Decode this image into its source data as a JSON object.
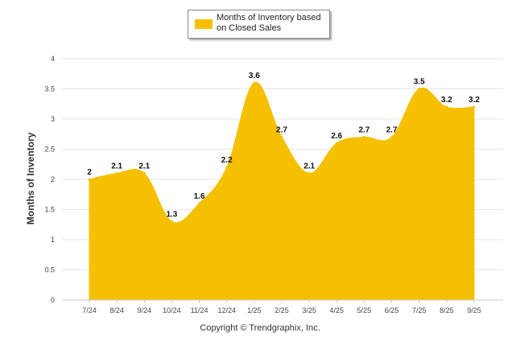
{
  "chart_data": {
    "type": "area",
    "title": "",
    "series": [
      {
        "name": "Months of Inventory based on Closed Sales",
        "values": [
          2,
          2.1,
          2.1,
          1.3,
          1.6,
          2.2,
          3.6,
          2.7,
          2.1,
          2.6,
          2.7,
          2.7,
          3.5,
          3.2,
          3.2
        ]
      }
    ],
    "categories": [
      "7/24",
      "8/24",
      "9/24",
      "10/24",
      "11/24",
      "12/24",
      "1/25",
      "2/25",
      "3/25",
      "4/25",
      "5/25",
      "6/25",
      "7/25",
      "8/25",
      "9/25"
    ],
    "data_labels": [
      "2",
      "2.1",
      "2.1",
      "1.3",
      "1.6",
      "2.2",
      "3.6",
      "2.7",
      "2.1",
      "2.6",
      "2.7",
      "2.7",
      "3.5",
      "3.2",
      "3.2"
    ],
    "y_ticks": [
      "0",
      "0.5",
      "1",
      "1.5",
      "2",
      "2.5",
      "3",
      "3.5",
      "4"
    ],
    "xlabel": "",
    "ylabel": "Months of Inventory",
    "ylim": [
      0,
      4
    ],
    "grid": true,
    "legend_position": "top-center",
    "color": "#f5c000"
  },
  "legend": {
    "label": "Months of Inventory based on Closed Sales"
  },
  "credit": "Copyright © Trendgraphix, Inc."
}
